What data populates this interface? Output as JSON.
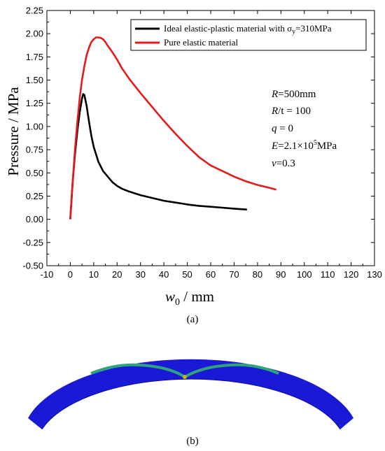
{
  "chart_data": {
    "type": "line",
    "xlabel": "w0 / mm",
    "xlabel_main": "w",
    "xlabel_sub": "0",
    "xlabel_unit": " / mm",
    "ylabel": "Pressure / MPa",
    "xlim": [
      -10,
      130
    ],
    "ylim": [
      -0.5,
      2.25
    ],
    "xticks": [
      -10,
      0,
      10,
      20,
      30,
      40,
      50,
      60,
      70,
      80,
      90,
      100,
      110,
      120,
      130
    ],
    "yticks": [
      "-0.50",
      "-0.25",
      "0.00",
      "0.25",
      "0.50",
      "0.75",
      "1.00",
      "1.25",
      "1.50",
      "1.75",
      "2.00",
      "2.25"
    ],
    "grid": false,
    "legend_position": "top-right",
    "series": [
      {
        "name": "Ideal elastic-plastic material with σy=310MPa",
        "name_main": "Ideal elastic-plastic material with σ",
        "name_sub": "y",
        "name_tail": "=310MPa",
        "color": "#000000",
        "x": [
          0,
          1,
          2,
          3,
          4,
          5,
          5.5,
          6,
          7,
          8,
          9,
          10,
          12,
          14,
          16,
          18,
          20,
          22,
          25,
          30,
          35,
          40,
          45,
          50,
          55,
          60,
          65,
          70,
          75.5
        ],
        "y": [
          0,
          0.4,
          0.7,
          0.95,
          1.15,
          1.3,
          1.35,
          1.34,
          1.22,
          1.05,
          0.9,
          0.78,
          0.62,
          0.52,
          0.46,
          0.4,
          0.36,
          0.33,
          0.3,
          0.26,
          0.23,
          0.2,
          0.18,
          0.16,
          0.145,
          0.135,
          0.125,
          0.115,
          0.105
        ]
      },
      {
        "name": "Pure elastic material",
        "color": "#e41a1c",
        "x": [
          0,
          1,
          2,
          3,
          4,
          5,
          6,
          7,
          8,
          9,
          10,
          11,
          12,
          13,
          14,
          15,
          16,
          18,
          20,
          22,
          25,
          30,
          35,
          40,
          45,
          50,
          55,
          60,
          65,
          70,
          75,
          80,
          85,
          88
        ],
        "y": [
          0,
          0.4,
          0.75,
          1.05,
          1.3,
          1.5,
          1.65,
          1.77,
          1.85,
          1.91,
          1.94,
          1.96,
          1.96,
          1.955,
          1.94,
          1.91,
          1.87,
          1.8,
          1.72,
          1.63,
          1.52,
          1.36,
          1.21,
          1.06,
          0.92,
          0.79,
          0.67,
          0.58,
          0.52,
          0.46,
          0.41,
          0.37,
          0.34,
          0.32
        ]
      }
    ]
  },
  "annotations": {
    "R_sym": "R",
    "R_val": "=500mm",
    "Rt_sym": "R",
    "Rt_val": "/t = 100",
    "q_sym": "q",
    "q_val": " = 0",
    "E_sym": "E",
    "E_val": "=2.1×10",
    "E_exp": "5",
    "E_unit": "MPa",
    "v_sym": "v",
    "v_val": "=0.3"
  },
  "captions": {
    "a": "(a)",
    "b": "(b)"
  },
  "colors": {
    "ring": "#1a1ad6",
    "ring_dark": "#0a0a9a",
    "buckle": "#2fa37a",
    "buckle_tip": "#c8b020"
  }
}
